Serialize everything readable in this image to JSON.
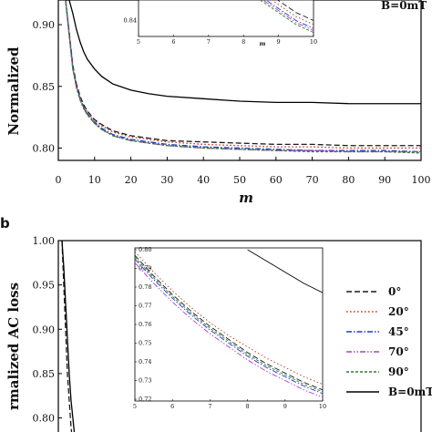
{
  "colors": {
    "0": "#1a1a1a",
    "20": "#c0392b",
    "45": "#1f3fbf",
    "70": "#b040c0",
    "90": "#2e7d32",
    "B0": "#000000"
  },
  "chart_data": [
    {
      "panel": "",
      "type": "line",
      "title": "",
      "xlabel": "m",
      "ylabel": "Normalized",
      "xlim": [
        0,
        100
      ],
      "ylim": [
        0.79,
        0.92
      ],
      "xticks": [
        0,
        10,
        20,
        30,
        40,
        50,
        60,
        70,
        80,
        90,
        100
      ],
      "xtick_labels": [
        "0",
        "10",
        "20",
        "30",
        "40",
        "50",
        "60",
        "70",
        "80",
        "90",
        "100"
      ],
      "yticks": [
        0.8,
        0.85,
        0.9
      ],
      "ytick_labels": [
        "0.80",
        "0.85",
        "0.90"
      ],
      "legend_text": "B=0mT",
      "series": [
        {
          "key": "0",
          "style": "dash",
          "x": [
            2,
            3,
            4,
            5,
            6,
            7,
            8,
            10,
            12,
            15,
            20,
            25,
            30,
            40,
            50,
            60,
            70,
            80,
            90,
            100
          ],
          "values": [
            0.92,
            0.894,
            0.867,
            0.852,
            0.842,
            0.835,
            0.83,
            0.823,
            0.819,
            0.814,
            0.81,
            0.808,
            0.806,
            0.805,
            0.804,
            0.803,
            0.803,
            0.802,
            0.802,
            0.802
          ]
        },
        {
          "key": "20",
          "style": "dot",
          "x": [
            2,
            3,
            4,
            5,
            6,
            7,
            8,
            10,
            12,
            15,
            20,
            25,
            30,
            40,
            50,
            60,
            70,
            80,
            90,
            100
          ],
          "values": [
            0.92,
            0.893,
            0.866,
            0.851,
            0.841,
            0.834,
            0.829,
            0.822,
            0.818,
            0.813,
            0.809,
            0.807,
            0.805,
            0.803,
            0.802,
            0.801,
            0.801,
            0.8,
            0.8,
            0.8
          ]
        },
        {
          "key": "45",
          "style": "dashdot",
          "x": [
            2,
            3,
            4,
            5,
            6,
            7,
            8,
            10,
            12,
            15,
            20,
            25,
            30,
            40,
            50,
            60,
            70,
            80,
            90,
            100
          ],
          "values": [
            0.92,
            0.892,
            0.865,
            0.85,
            0.84,
            0.833,
            0.828,
            0.821,
            0.816,
            0.811,
            0.807,
            0.805,
            0.803,
            0.801,
            0.8,
            0.799,
            0.798,
            0.798,
            0.798,
            0.797
          ]
        },
        {
          "key": "70",
          "style": "dashdotdot",
          "x": [
            2,
            3,
            4,
            5,
            6,
            7,
            8,
            10,
            12,
            15,
            20,
            25,
            30,
            40,
            50,
            60,
            70,
            80,
            90,
            100
          ],
          "values": [
            0.92,
            0.891,
            0.864,
            0.849,
            0.839,
            0.832,
            0.827,
            0.82,
            0.815,
            0.81,
            0.806,
            0.804,
            0.802,
            0.8,
            0.799,
            0.798,
            0.798,
            0.797,
            0.797,
            0.797
          ]
        },
        {
          "key": "90",
          "style": "shortdash",
          "x": [
            2,
            3,
            4,
            5,
            6,
            7,
            8,
            10,
            12,
            15,
            20,
            25,
            30,
            40,
            50,
            60,
            70,
            80,
            90,
            100
          ],
          "values": [
            0.92,
            0.891,
            0.864,
            0.849,
            0.839,
            0.832,
            0.827,
            0.82,
            0.815,
            0.81,
            0.806,
            0.804,
            0.802,
            0.8,
            0.799,
            0.798,
            0.797,
            0.797,
            0.797,
            0.796
          ]
        },
        {
          "key": "B0",
          "style": "solid",
          "x": [
            2,
            3,
            4,
            5,
            6,
            7,
            8,
            10,
            12,
            15,
            20,
            25,
            30,
            40,
            50,
            60,
            70,
            80,
            90,
            100
          ],
          "values": [
            0.92,
            0.92,
            0.909,
            0.896,
            0.886,
            0.878,
            0.872,
            0.864,
            0.858,
            0.852,
            0.847,
            0.844,
            0.842,
            0.84,
            0.838,
            0.837,
            0.837,
            0.836,
            0.836,
            0.836
          ]
        }
      ],
      "inset": {
        "xlim": [
          5,
          10
        ],
        "ylim": [
          0.836,
          0.852
        ],
        "xticks": [
          5,
          6,
          7,
          8,
          9,
          10
        ],
        "xtick_labels": [
          "5",
          "6",
          "7",
          "8",
          "9",
          "10"
        ],
        "yticks": [
          0.84
        ],
        "ytick_labels": [
          "0.84"
        ],
        "xlabel": "m",
        "series": [
          {
            "key": "0",
            "style": "dash",
            "x": [
              8,
              8.5,
              9,
              9.5,
              10
            ],
            "values": [
              0.852,
              0.848,
              0.845,
              0.842,
              0.84
            ]
          },
          {
            "key": "20",
            "style": "dot",
            "x": [
              8,
              8.5,
              9,
              9.5,
              10
            ],
            "values": [
              0.851,
              0.847,
              0.844,
              0.841,
              0.839
            ]
          },
          {
            "key": "45",
            "style": "dashdot",
            "x": [
              8,
              8.5,
              9,
              9.5,
              10
            ],
            "values": [
              0.85,
              0.846,
              0.843,
              0.84,
              0.838
            ]
          },
          {
            "key": "70",
            "style": "dashdotdot",
            "x": [
              8,
              8.5,
              9,
              9.5,
              10
            ],
            "values": [
              0.8495,
              0.8455,
              0.8425,
              0.8395,
              0.8375
            ]
          },
          {
            "key": "90",
            "style": "shortdash",
            "x": [
              8,
              8.5,
              9,
              9.5,
              10
            ],
            "values": [
              0.849,
              0.845,
              0.842,
              0.839,
              0.837
            ]
          }
        ]
      }
    },
    {
      "panel": "b",
      "type": "line",
      "title": "",
      "xlabel": "",
      "ylabel": "rmalized AC loss",
      "xlim": [
        0,
        100
      ],
      "ylim": [
        0.78,
        1.0
      ],
      "yticks": [
        0.8,
        0.85,
        0.9,
        0.95,
        1.0
      ],
      "ytick_labels": [
        "0.80",
        "0.85",
        "0.90",
        "0.95",
        "1.00"
      ],
      "legend": [
        {
          "key": "0",
          "label": "0°",
          "style": "dash"
        },
        {
          "key": "20",
          "label": "20°",
          "style": "dot"
        },
        {
          "key": "45",
          "label": "45°",
          "style": "dashdot"
        },
        {
          "key": "70",
          "label": "70°",
          "style": "dashdotdot"
        },
        {
          "key": "90",
          "label": "90°",
          "style": "shortdash"
        },
        {
          "key": "B0",
          "label": "B=0mT",
          "style": "solid"
        }
      ],
      "series": [
        {
          "key": "0",
          "style": "dash",
          "x": [
            1,
            1.5,
            2,
            2.5,
            3,
            3.5,
            4
          ],
          "values": [
            1.0,
            0.95,
            0.9,
            0.85,
            0.82,
            0.79,
            0.77
          ]
        },
        {
          "key": "B0",
          "style": "solid",
          "x": [
            1,
            1.5,
            2,
            2.5,
            3,
            3.5,
            4,
            4.5
          ],
          "values": [
            1.0,
            0.97,
            0.93,
            0.89,
            0.85,
            0.82,
            0.8,
            0.78
          ]
        }
      ],
      "inset": {
        "xlim": [
          5,
          10
        ],
        "ylim": [
          0.72,
          0.8
        ],
        "xticks": [
          5,
          6,
          7,
          8,
          9,
          10
        ],
        "xtick_labels": [
          "5",
          "6",
          "7",
          "8",
          "9",
          "10"
        ],
        "yticks": [
          0.72,
          0.73,
          0.74,
          0.75,
          0.76,
          0.77,
          0.78,
          0.79,
          0.8
        ],
        "ytick_labels": [
          "0.72",
          "0.73",
          "0.74",
          "0.75",
          "0.76",
          "0.77",
          "0.78",
          "0.79",
          "0.80"
        ],
        "series": [
          {
            "key": "0",
            "style": "dash",
            "x": [
              5,
              5.5,
              6,
              6.5,
              7,
              7.5,
              8,
              8.5,
              9,
              9.5,
              10
            ],
            "values": [
              0.797,
              0.786,
              0.776,
              0.767,
              0.759,
              0.752,
              0.745,
              0.739,
              0.734,
              0.729,
              0.725
            ]
          },
          {
            "key": "20",
            "style": "dot",
            "x": [
              5,
              5.5,
              6,
              6.5,
              7,
              7.5,
              8,
              8.5,
              9,
              9.5,
              10
            ],
            "values": [
              0.799,
              0.788,
              0.778,
              0.769,
              0.761,
              0.754,
              0.748,
              0.742,
              0.737,
              0.732,
              0.728
            ]
          },
          {
            "key": "45",
            "style": "dashdot",
            "x": [
              5,
              5.5,
              6,
              6.5,
              7,
              7.5,
              8,
              8.5,
              9,
              9.5,
              10
            ],
            "values": [
              0.795,
              0.784,
              0.774,
              0.765,
              0.757,
              0.75,
              0.743,
              0.737,
              0.732,
              0.727,
              0.723
            ]
          },
          {
            "key": "70",
            "style": "dashdotdot",
            "x": [
              5,
              5.5,
              6,
              6.5,
              7,
              7.5,
              8,
              8.5,
              9,
              9.5,
              10
            ],
            "values": [
              0.793,
              0.782,
              0.772,
              0.763,
              0.755,
              0.748,
              0.741,
              0.735,
              0.73,
              0.725,
              0.721
            ]
          },
          {
            "key": "90",
            "style": "shortdash",
            "x": [
              5,
              5.5,
              6,
              6.5,
              7,
              7.5,
              8,
              8.5,
              9,
              9.5,
              10
            ],
            "values": [
              0.796,
              0.785,
              0.775,
              0.766,
              0.758,
              0.751,
              0.744,
              0.738,
              0.733,
              0.728,
              0.724
            ]
          },
          {
            "key": "B0",
            "style": "solid",
            "x": [
              8,
              8.5,
              9,
              9.5,
              10
            ],
            "values": [
              0.8,
              0.794,
              0.788,
              0.782,
              0.777
            ]
          }
        ]
      }
    }
  ]
}
